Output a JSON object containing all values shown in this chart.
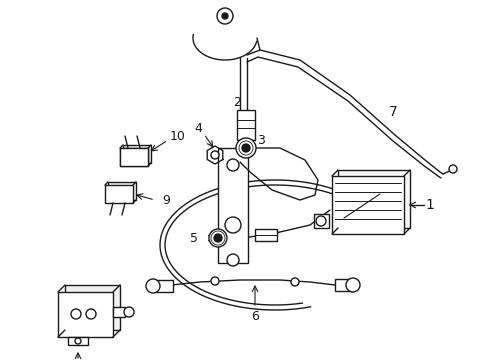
{
  "bg_color": "#ffffff",
  "lc": "#1a1a1a",
  "fig_width": 4.89,
  "fig_height": 3.6,
  "dpi": 100
}
